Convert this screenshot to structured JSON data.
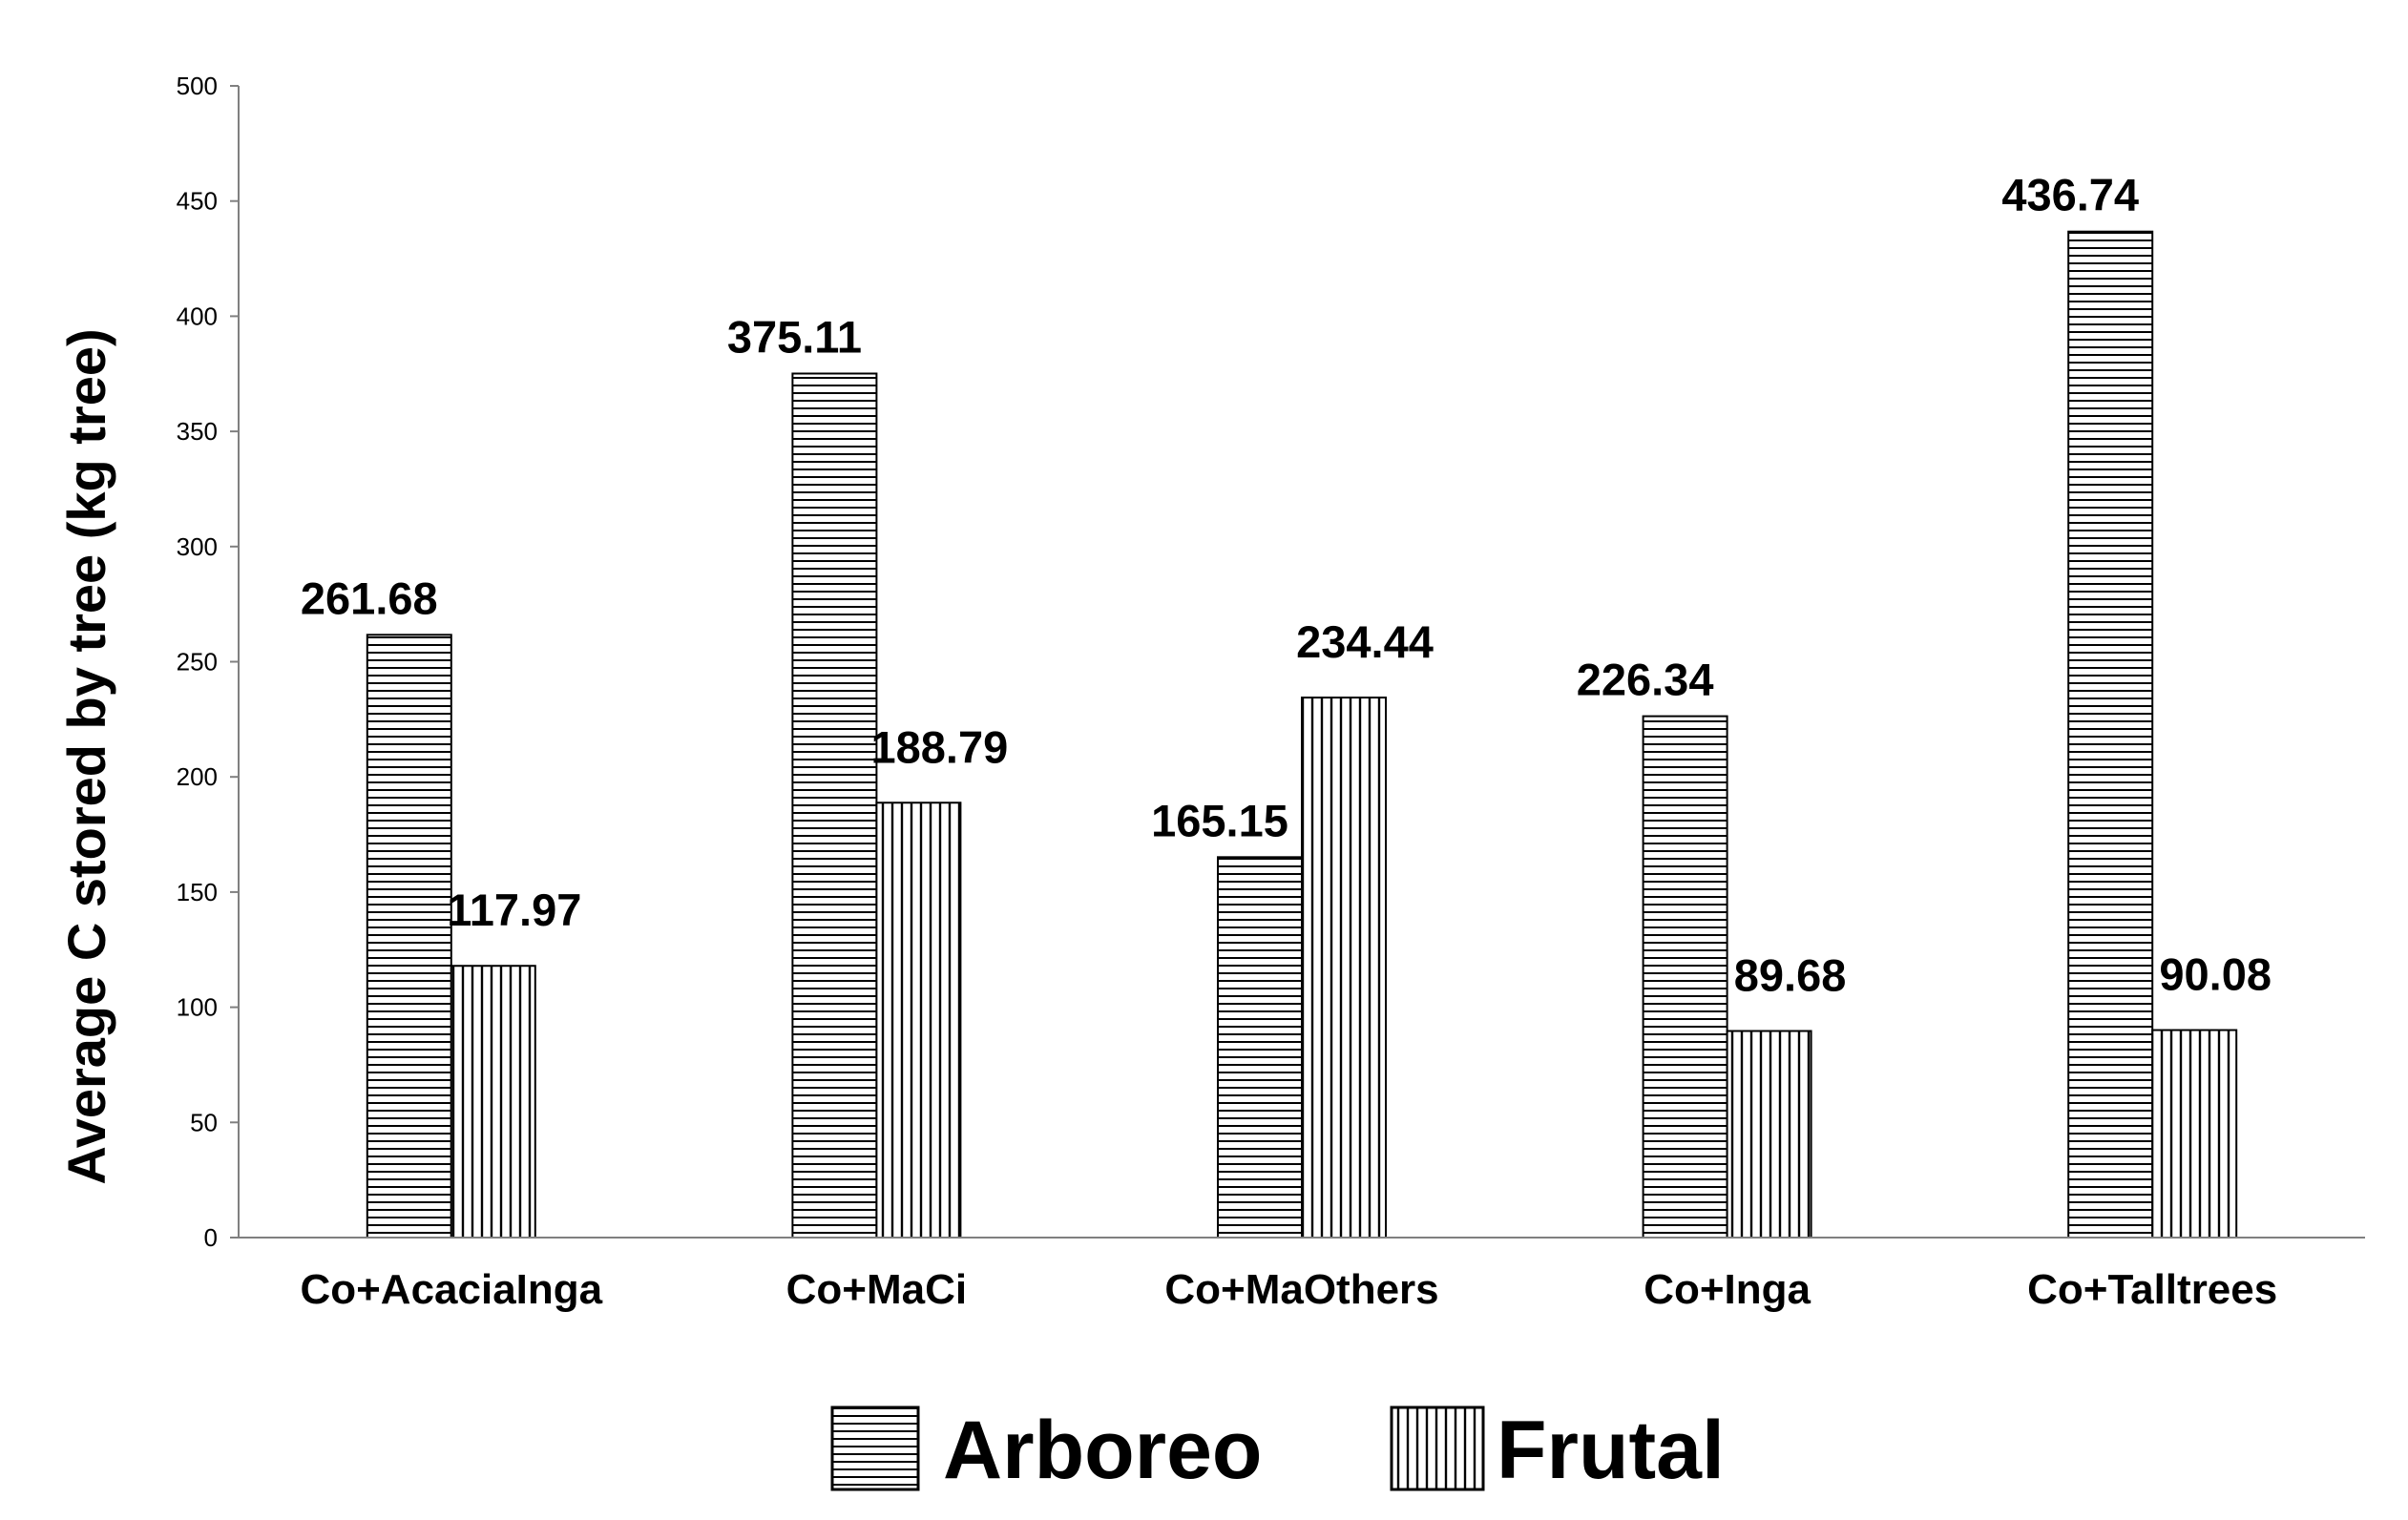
{
  "chart_data": {
    "type": "bar",
    "title": "",
    "xlabel": "",
    "ylabel": "Average C stored by tree (kg tree)",
    "ylim": [
      0,
      500
    ],
    "yticks": [
      0,
      50,
      100,
      150,
      200,
      250,
      300,
      350,
      400,
      450,
      500
    ],
    "grid": false,
    "legend_position": "bottom",
    "categories": [
      "Co+AcaciaInga",
      "Co+MaCi",
      "Co+MaOthers",
      "Co+Inga",
      "Co+Talltrees"
    ],
    "series": [
      {
        "name": "Arboreo",
        "pattern": "horizontal-lines",
        "values": [
          261.68,
          375.11,
          165.15,
          226.34,
          436.74
        ],
        "labels": [
          "261.68",
          "375.11",
          "165.15",
          "226.34",
          "436.74"
        ]
      },
      {
        "name": "Frutal",
        "pattern": "vertical-lines",
        "values": [
          117.97,
          188.79,
          234.44,
          89.68,
          90.08
        ],
        "labels": [
          "117.97",
          "188.79",
          "234.44",
          "89.68",
          "90.08"
        ]
      }
    ],
    "colors": {
      "axis": "#808080",
      "bar_stroke": "#000000",
      "hatch": "#000000",
      "background": "#ffffff"
    }
  }
}
